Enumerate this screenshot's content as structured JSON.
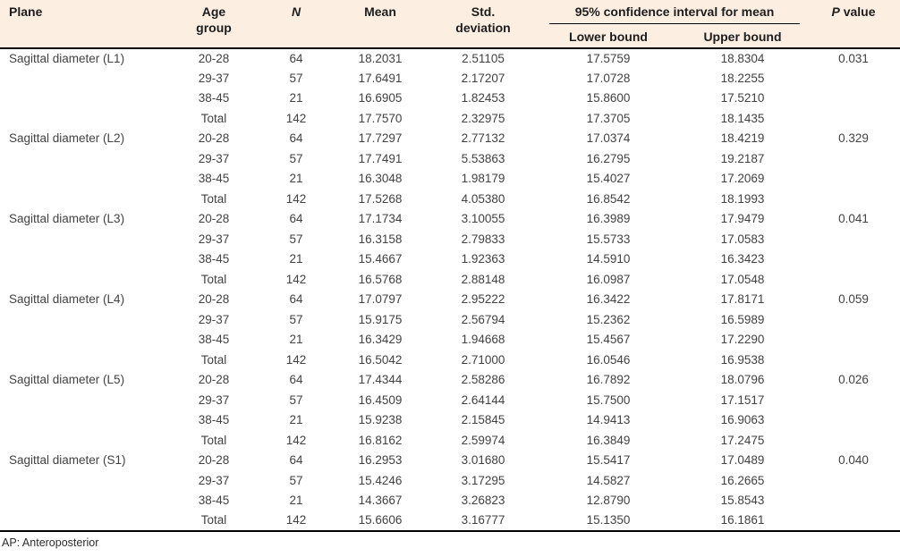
{
  "colors": {
    "header_bg": "#fcefe2",
    "border": "#000000",
    "header_text": "#1d1d1d",
    "body_text": "#424242"
  },
  "table": {
    "header": {
      "plane": "Plane",
      "age_group": "Age group",
      "n": "N",
      "mean": "Mean",
      "std_deviation": "Std. deviation",
      "ci_group": "95% confidence interval for mean",
      "lower_bound": "Lower bound",
      "upper_bound": "Upper bound",
      "p_italic": "P",
      "p_rest": " value"
    },
    "sections": [
      {
        "plane": "Sagittal diameter (L1)",
        "p_value": "0.031",
        "rows": [
          {
            "age_group": "20-28",
            "n": "64",
            "mean": "18.2031",
            "std": "2.51105",
            "lower": "17.5759",
            "upper": "18.8304"
          },
          {
            "age_group": "29-37",
            "n": "57",
            "mean": "17.6491",
            "std": "2.17207",
            "lower": "17.0728",
            "upper": "18.2255"
          },
          {
            "age_group": "38-45",
            "n": "21",
            "mean": "16.6905",
            "std": "1.82453",
            "lower": "15.8600",
            "upper": "17.5210"
          },
          {
            "age_group": "Total",
            "n": "142",
            "mean": "17.7570",
            "std": "2.32975",
            "lower": "17.3705",
            "upper": "18.1435"
          }
        ]
      },
      {
        "plane": "Sagittal diameter (L2)",
        "p_value": "0.329",
        "rows": [
          {
            "age_group": "20-28",
            "n": "64",
            "mean": "17.7297",
            "std": "2.77132",
            "lower": "17.0374",
            "upper": "18.4219"
          },
          {
            "age_group": "29-37",
            "n": "57",
            "mean": "17.7491",
            "std": "5.53863",
            "lower": "16.2795",
            "upper": "19.2187"
          },
          {
            "age_group": "38-45",
            "n": "21",
            "mean": "16.3048",
            "std": "1.98179",
            "lower": "15.4027",
            "upper": "17.2069"
          },
          {
            "age_group": "Total",
            "n": "142",
            "mean": "17.5268",
            "std": "4.05380",
            "lower": "16.8542",
            "upper": "18.1993"
          }
        ]
      },
      {
        "plane": "Sagittal diameter (L3)",
        "p_value": "0.041",
        "rows": [
          {
            "age_group": "20-28",
            "n": "64",
            "mean": "17.1734",
            "std": "3.10055",
            "lower": "16.3989",
            "upper": "17.9479"
          },
          {
            "age_group": "29-37",
            "n": "57",
            "mean": "16.3158",
            "std": "2.79833",
            "lower": "15.5733",
            "upper": "17.0583"
          },
          {
            "age_group": "38-45",
            "n": "21",
            "mean": "15.4667",
            "std": "1.92363",
            "lower": "14.5910",
            "upper": "16.3423"
          },
          {
            "age_group": "Total",
            "n": "142",
            "mean": "16.5768",
            "std": "2.88148",
            "lower": "16.0987",
            "upper": "17.0548"
          }
        ]
      },
      {
        "plane": "Sagittal diameter (L4)",
        "p_value": "0.059",
        "rows": [
          {
            "age_group": "20-28",
            "n": "64",
            "mean": "17.0797",
            "std": "2.95222",
            "lower": "16.3422",
            "upper": "17.8171"
          },
          {
            "age_group": "29-37",
            "n": "57",
            "mean": "15.9175",
            "std": "2.56794",
            "lower": "15.2362",
            "upper": "16.5989"
          },
          {
            "age_group": "38-45",
            "n": "21",
            "mean": "16.3429",
            "std": "1.94668",
            "lower": "15.4567",
            "upper": "17.2290"
          },
          {
            "age_group": "Total",
            "n": "142",
            "mean": "16.5042",
            "std": "2.71000",
            "lower": "16.0546",
            "upper": "16.9538"
          }
        ]
      },
      {
        "plane": "Sagittal diameter (L5)",
        "p_value": "0.026",
        "rows": [
          {
            "age_group": "20-28",
            "n": "64",
            "mean": "17.4344",
            "std": "2.58286",
            "lower": "16.7892",
            "upper": "18.0796"
          },
          {
            "age_group": "29-37",
            "n": "57",
            "mean": "16.4509",
            "std": "2.64144",
            "lower": "15.7500",
            "upper": "17.1517"
          },
          {
            "age_group": "38-45",
            "n": "21",
            "mean": "15.9238",
            "std": "2.15845",
            "lower": "14.9413",
            "upper": "16.9063"
          },
          {
            "age_group": "Total",
            "n": "142",
            "mean": "16.8162",
            "std": "2.59974",
            "lower": "16.3849",
            "upper": "17.2475"
          }
        ]
      },
      {
        "plane": "Sagittal diameter (S1)",
        "p_value": "0.040",
        "rows": [
          {
            "age_group": "20-28",
            "n": "64",
            "mean": "16.2953",
            "std": "3.01680",
            "lower": "15.5417",
            "upper": "17.0489"
          },
          {
            "age_group": "29-37",
            "n": "57",
            "mean": "15.4246",
            "std": "3.17295",
            "lower": "14.5827",
            "upper": "16.2665"
          },
          {
            "age_group": "38-45",
            "n": "21",
            "mean": "14.3667",
            "std": "3.26823",
            "lower": "12.8790",
            "upper": "15.8543"
          },
          {
            "age_group": "Total",
            "n": "142",
            "mean": "15.6606",
            "std": "3.16777",
            "lower": "15.1350",
            "upper": "16.1861"
          }
        ]
      }
    ],
    "footnote": "AP: Anteroposterior"
  }
}
